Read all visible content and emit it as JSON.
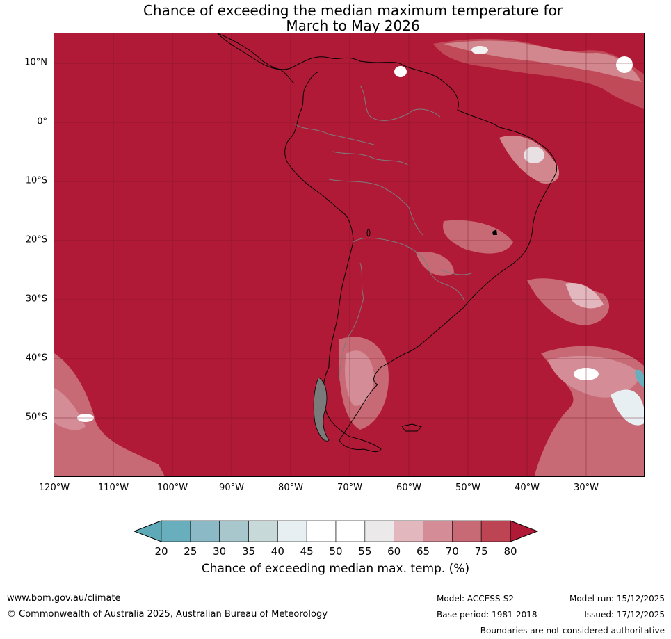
{
  "title_line1": "Chance of exceeding the median maximum temperature for",
  "title_line2": "March to May 2026",
  "map": {
    "lat_labels": [
      "10°N",
      "0°",
      "10°S",
      "20°S",
      "30°S",
      "40°S",
      "50°S"
    ],
    "lat_values": [
      10,
      0,
      -10,
      -20,
      -30,
      -40,
      -50
    ],
    "lon_labels": [
      "120°W",
      "110°W",
      "100°W",
      "90°W",
      "80°W",
      "70°W",
      "60°W",
      "50°W",
      "40°W",
      "30°W"
    ],
    "lon_values": [
      -120,
      -110,
      -100,
      -90,
      -80,
      -70,
      -60,
      -50,
      -40,
      -30
    ],
    "lat_range": [
      -60,
      15
    ],
    "lon_range": [
      -120,
      -20
    ]
  },
  "colorbar": {
    "ticks": [
      "20",
      "25",
      "30",
      "35",
      "40",
      "45",
      "50",
      "55",
      "60",
      "65",
      "70",
      "75",
      "80"
    ],
    "colors": [
      "#5ea9b7",
      "#68aebd",
      "#8bb9c6",
      "#a8c7cd",
      "#c8d9da",
      "#e8eff2",
      "#ffffff",
      "#ffffff",
      "#ebe9ea",
      "#e2b8be",
      "#d48d96",
      "#c86a75",
      "#bd4453",
      "#b01a37"
    ],
    "label": "Chance of exceeding median max. temp. (%)"
  },
  "footer": {
    "website": "www.bom.gov.au/climate",
    "copyright": "© Commonwealth of Australia 2025, Australian Bureau of Meteorology",
    "model": "Model: ACCESS-S2",
    "base_period": "Base period: 1981-2018",
    "model_run": "Model run: 15/12/2025",
    "issued": "Issued: 17/12/2025",
    "disclaimer": "Boundaries are not considered authoritative"
  }
}
